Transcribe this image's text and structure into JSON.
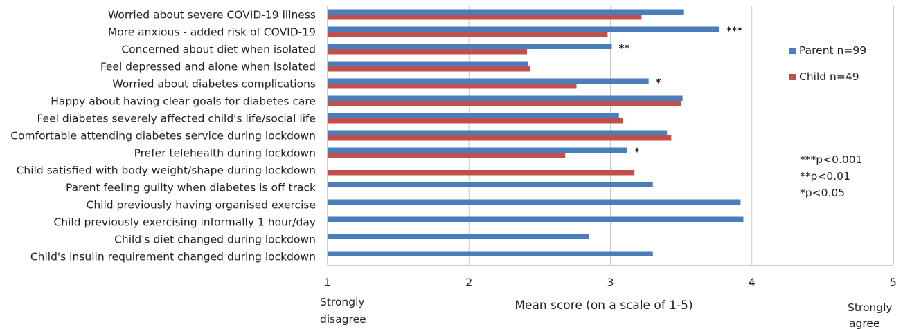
{
  "chart_data": {
    "type": "bar",
    "orientation": "horizontal",
    "categories": [
      "Worried about severe COVID-19 illness",
      "More anxious  - added risk of COVID-19",
      "Concerned about diet when isolated",
      "Feel depressed and alone when isolated",
      "Worried about diabetes complications",
      "Happy about having clear goals for diabetes care",
      "Feel diabetes severely affected child's life/social life",
      "Comfortable attending diabetes service during lockdown",
      "Prefer telehealth during lockdown",
      "Child satisfied with body weight/shape during lockdown",
      "Parent feeling guilty when diabetes is off track",
      "Child previously having organised exercise",
      "Child previously exercising informally 1 hour/day",
      "Child's diet changed during lockdown",
      "Child's insulin requirement changed during lockdown"
    ],
    "series": [
      {
        "name": "Parent n=99",
        "color": "#4a7ebb",
        "values": [
          3.52,
          3.77,
          3.01,
          2.42,
          3.27,
          3.51,
          3.06,
          3.4,
          3.12,
          null,
          3.3,
          3.92,
          3.94,
          2.85,
          3.3
        ]
      },
      {
        "name": "Child n=49",
        "color": "#c0504d",
        "values": [
          3.22,
          2.98,
          2.41,
          2.43,
          2.76,
          3.5,
          3.09,
          3.43,
          2.68,
          3.17,
          null,
          null,
          null,
          null,
          null
        ]
      }
    ],
    "significance": [
      "",
      "***",
      "**",
      "",
      "*",
      "",
      "",
      "",
      "*",
      "",
      "",
      "",
      "",
      "",
      ""
    ],
    "xlim": [
      1,
      5
    ],
    "xticks": [
      "1",
      "2",
      "3",
      "4",
      "5"
    ],
    "xlabel": "Mean score (on a scale of 1-5)",
    "x_anchor_left": [
      "Strongly",
      "disagree"
    ],
    "x_anchor_right": [
      "Strongly",
      "agree"
    ],
    "gridlines": "vertical",
    "legend_position": "right",
    "notes": [
      "***p<0.001",
      "**p<0.01",
      "*p<0.05"
    ]
  }
}
